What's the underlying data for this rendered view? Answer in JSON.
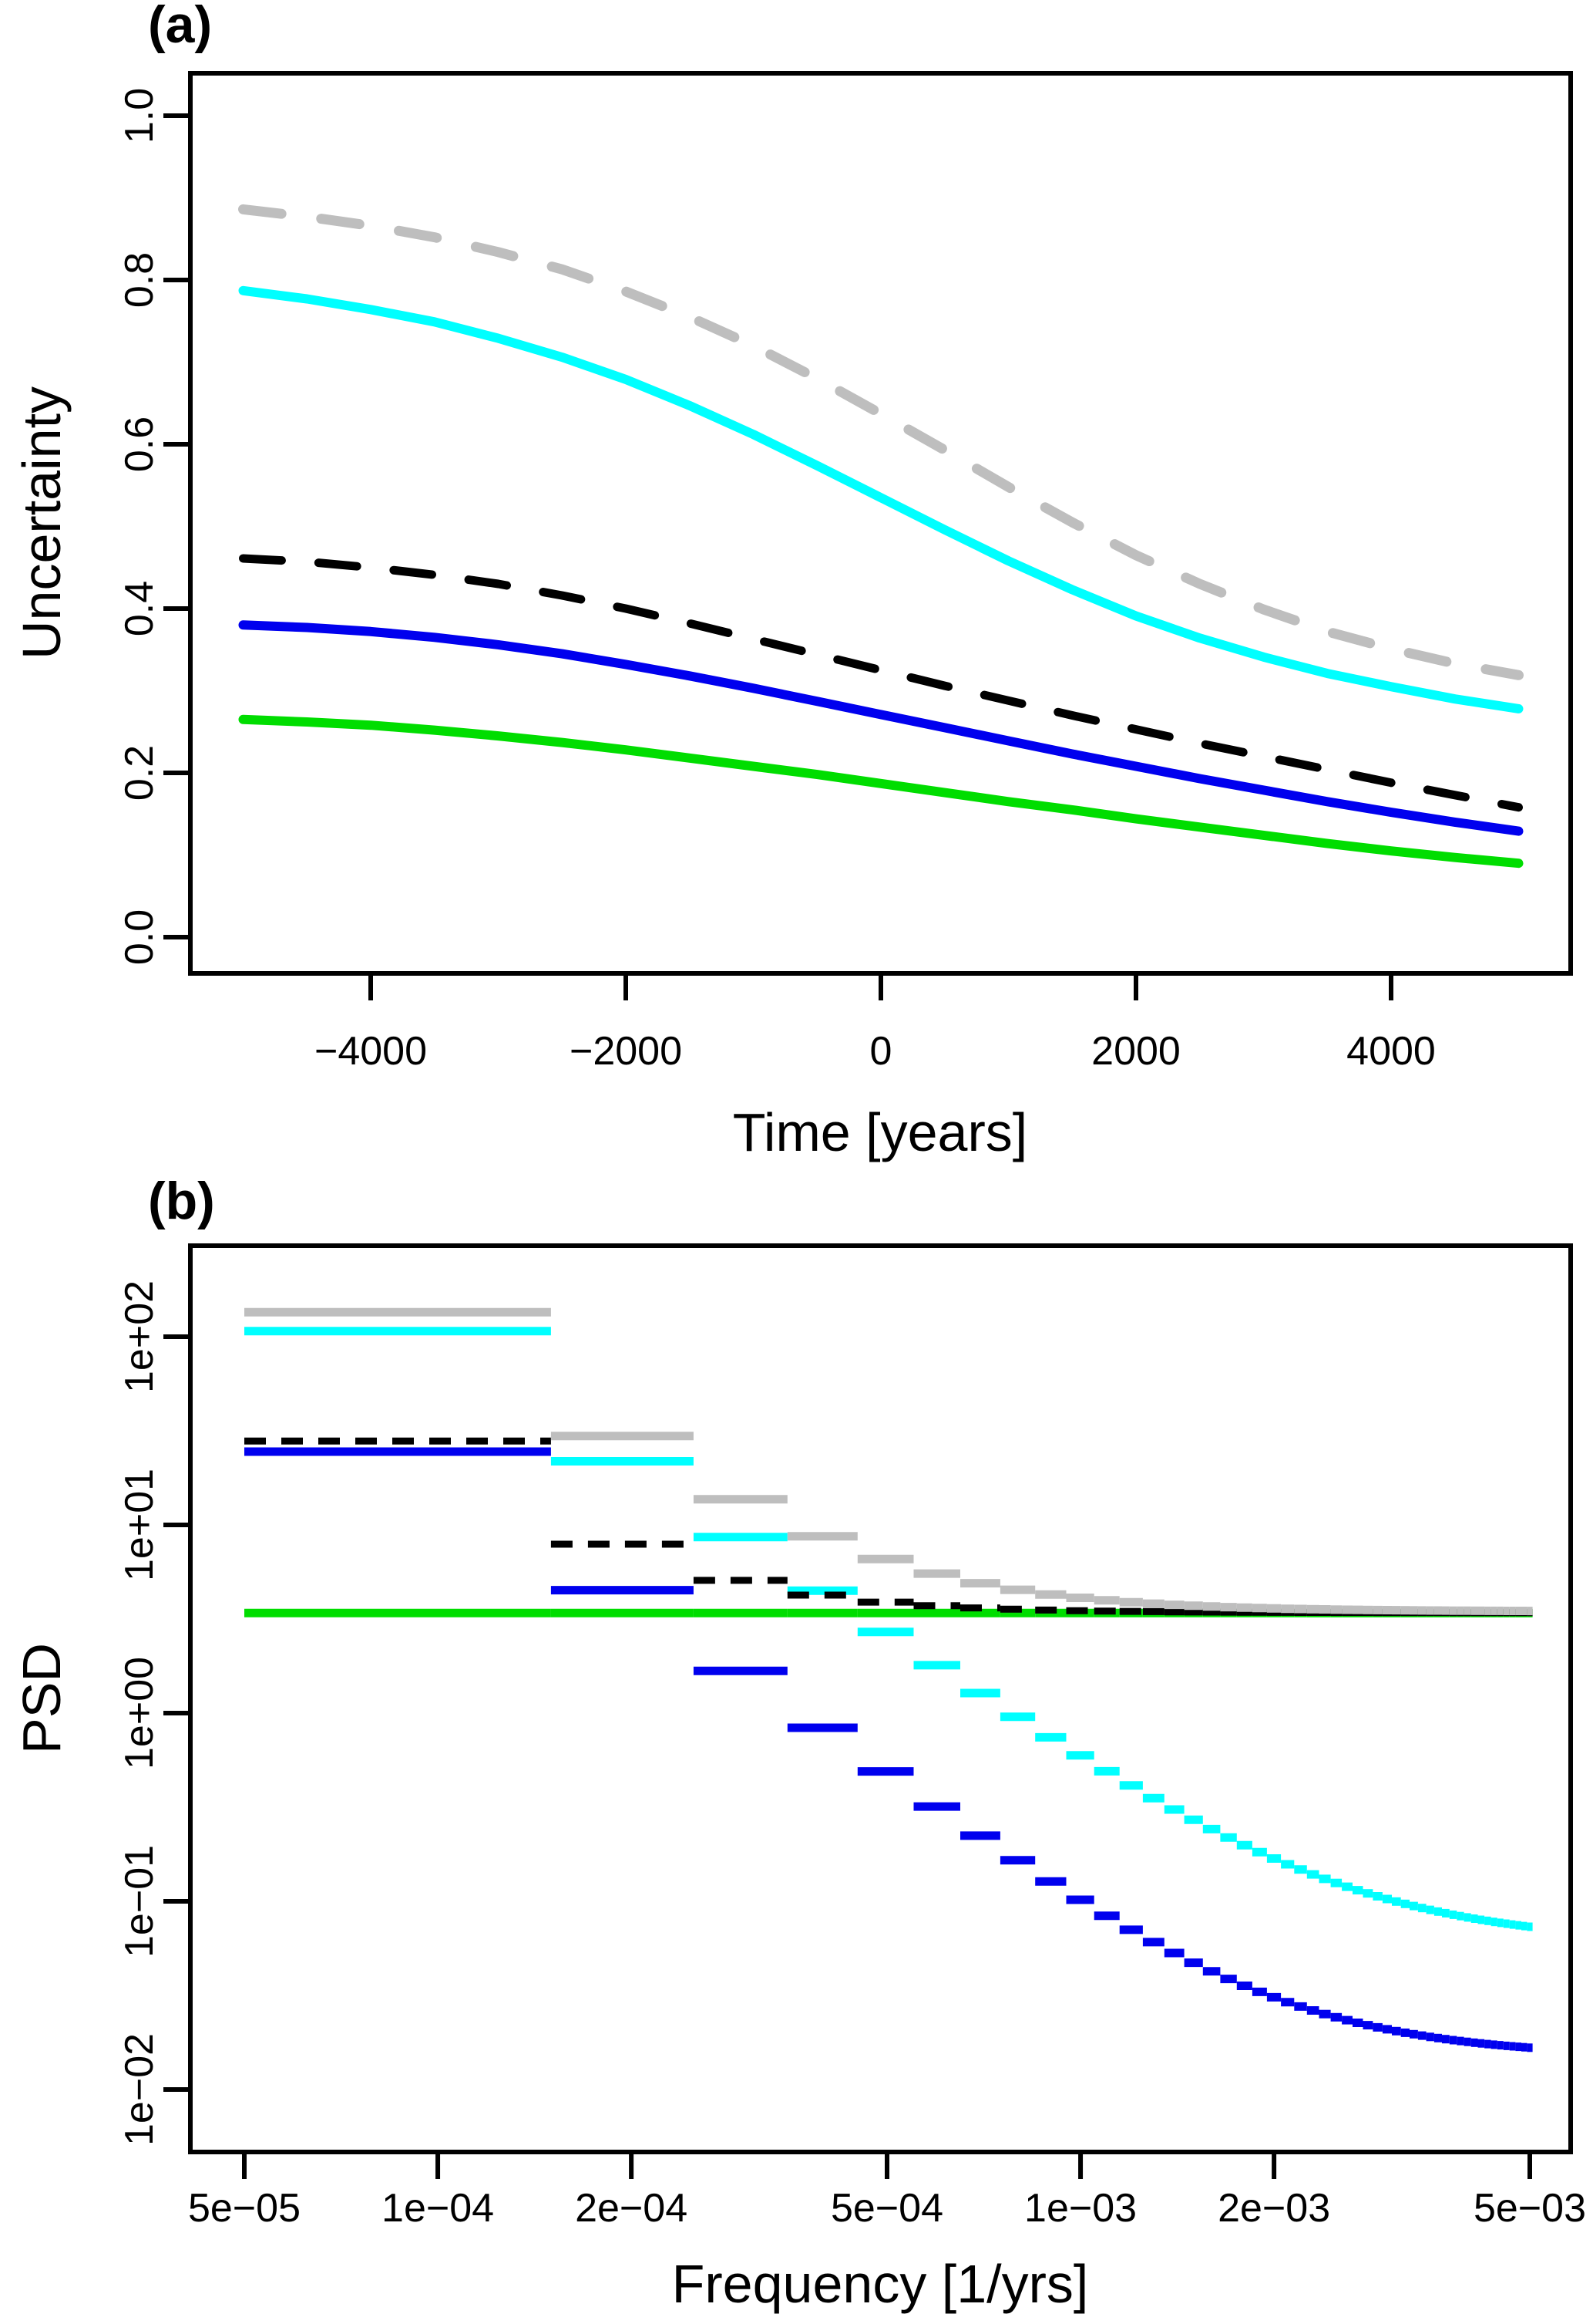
{
  "figure": {
    "background": "#ffffff",
    "panel_a_letter": "(a)",
    "panel_b_letter": "(b)"
  },
  "colors": {
    "gray": "#bebebe",
    "cyan": "#00ffff",
    "black": "#000000",
    "blue": "#0000ee",
    "green": "#00dd00",
    "axis": "#000000"
  },
  "chart_data": [
    {
      "id": "panel_a",
      "type": "line",
      "title": "(a)",
      "xlabel": "Time [years]",
      "ylabel": "Uncertainty",
      "xlim": [
        -5000,
        5000
      ],
      "ylim": [
        0,
        1
      ],
      "grid": false,
      "legend": null,
      "x_ticks": {
        "values": [
          -4000,
          -2000,
          0,
          2000,
          4000
        ],
        "labels": [
          "−4000",
          "−2000",
          "0",
          "2000",
          "4000"
        ]
      },
      "y_ticks": {
        "values": [
          0.0,
          0.2,
          0.4,
          0.6,
          0.8,
          1.0
        ],
        "labels": [
          "0.0",
          "0.2",
          "0.4",
          "0.6",
          "0.8",
          "1.0"
        ]
      },
      "x": [
        -5000,
        -4500,
        -4000,
        -3500,
        -3000,
        -2500,
        -2000,
        -1500,
        -1000,
        -500,
        0,
        500,
        1000,
        1500,
        2000,
        2500,
        3000,
        3500,
        4000,
        4500,
        5000
      ],
      "series": [
        {
          "name": "gray-dashed",
          "color": "#bebebe",
          "dash": [
            50,
            52
          ],
          "width": 13,
          "values": [
            0.886,
            0.877,
            0.866,
            0.852,
            0.834,
            0.813,
            0.786,
            0.755,
            0.72,
            0.68,
            0.637,
            0.593,
            0.548,
            0.505,
            0.465,
            0.43,
            0.399,
            0.372,
            0.351,
            0.333,
            0.319
          ]
        },
        {
          "name": "cyan-solid",
          "color": "#00ffff",
          "dash": null,
          "width": 12,
          "values": [
            0.787,
            0.777,
            0.764,
            0.749,
            0.729,
            0.706,
            0.679,
            0.647,
            0.612,
            0.574,
            0.535,
            0.496,
            0.458,
            0.423,
            0.391,
            0.364,
            0.341,
            0.321,
            0.305,
            0.29,
            0.278
          ]
        },
        {
          "name": "black-dashed",
          "color": "#000000",
          "dash": [
            50,
            48
          ],
          "width": 11,
          "values": [
            0.461,
            0.457,
            0.45,
            0.441,
            0.43,
            0.416,
            0.4,
            0.382,
            0.363,
            0.344,
            0.325,
            0.306,
            0.288,
            0.27,
            0.253,
            0.236,
            0.22,
            0.204,
            0.188,
            0.173,
            0.158
          ]
        },
        {
          "name": "blue-solid",
          "color": "#0000ee",
          "dash": null,
          "width": 12,
          "values": [
            0.38,
            0.377,
            0.372,
            0.365,
            0.356,
            0.345,
            0.332,
            0.318,
            0.303,
            0.287,
            0.271,
            0.255,
            0.239,
            0.223,
            0.208,
            0.193,
            0.179,
            0.165,
            0.152,
            0.14,
            0.129
          ]
        },
        {
          "name": "green-solid",
          "color": "#00dd00",
          "dash": null,
          "width": 12,
          "values": [
            0.265,
            0.262,
            0.258,
            0.252,
            0.245,
            0.237,
            0.228,
            0.218,
            0.208,
            0.198,
            0.187,
            0.176,
            0.165,
            0.155,
            0.144,
            0.134,
            0.124,
            0.114,
            0.105,
            0.097,
            0.09
          ]
        }
      ]
    },
    {
      "id": "panel_b",
      "type": "step",
      "title": "(b)",
      "xlabel": "Frequency [1/yrs]",
      "ylabel": "PSD",
      "x_scale": "log",
      "y_scale": "log",
      "grid": false,
      "legend": null,
      "xlim": [
        5e-05,
        0.00505
      ],
      "ylim": [
        0.01,
        100
      ],
      "x_ticks": {
        "values": [
          5e-05,
          0.0001,
          0.0002,
          0.0005,
          0.001,
          0.002,
          0.005
        ],
        "labels": [
          "5e−05",
          "1e−04",
          "2e−04",
          "5e−04",
          "1e−03",
          "2e−03",
          "5e−03"
        ]
      },
      "y_ticks": {
        "values": [
          100,
          10,
          1,
          0.1,
          0.01
        ],
        "labels": [
          "1e+02",
          "1e+01",
          "1e+00",
          "1e−01",
          "1e−02"
        ]
      },
      "bins": {
        "count": 50,
        "delta_f": 0.0001,
        "edge_rule": "bin k spans (k-0.5)e-4 .. (k+0.5)e-4"
      },
      "series": [
        {
          "name": "blue-signal",
          "color": "#0000ee",
          "width": 11,
          "dash": null,
          "model": {
            "amp": 24.5,
            "exponent": -2.45,
            "floor": 0.015
          },
          "sample_values_k1_10": [
            24.52,
            4.5,
            1.67,
            0.84,
            0.49,
            0.32,
            0.22,
            0.17,
            0.13,
            0.1
          ]
        },
        {
          "name": "cyan-total",
          "color": "#00ffff",
          "width": 11,
          "dash": null,
          "model": {
            "amp": 107,
            "exponent": -2.3,
            "floor": 0.06
          },
          "sample_values_k1_10": [
            107.06,
            21.79,
            8.61,
            4.47,
            2.7,
            1.79,
            1.28,
            0.96,
            0.74,
            0.6
          ]
        },
        {
          "name": "green-noise",
          "color": "#00dd00",
          "width": 11,
          "dash": null,
          "model": {
            "constant": 3.4
          },
          "sample_values_k1_10": [
            3.4,
            3.4,
            3.4,
            3.4,
            3.4,
            3.4,
            3.4,
            3.4,
            3.4,
            3.4
          ]
        },
        {
          "name": "black-dashed",
          "color": "#000000",
          "width": 9,
          "dash": [
            28,
            20
          ],
          "model": {
            "sum_of": [
              "blue-signal",
              "green-noise"
            ]
          },
          "sample_values_k1_10": [
            27.92,
            7.9,
            5.07,
            4.24,
            3.89,
            3.72,
            3.62,
            3.57,
            3.53,
            3.5
          ]
        },
        {
          "name": "gray-sum",
          "color": "#bebebe",
          "width": 11,
          "dash": null,
          "model": {
            "sum_of": [
              "cyan-total",
              "blue-signal",
              "green-noise"
            ]
          },
          "sample_values_k1_10": [
            134.98,
            29.69,
            13.68,
            8.71,
            6.59,
            5.51,
            4.9,
            4.53,
            4.27,
            4.1
          ]
        }
      ]
    }
  ]
}
